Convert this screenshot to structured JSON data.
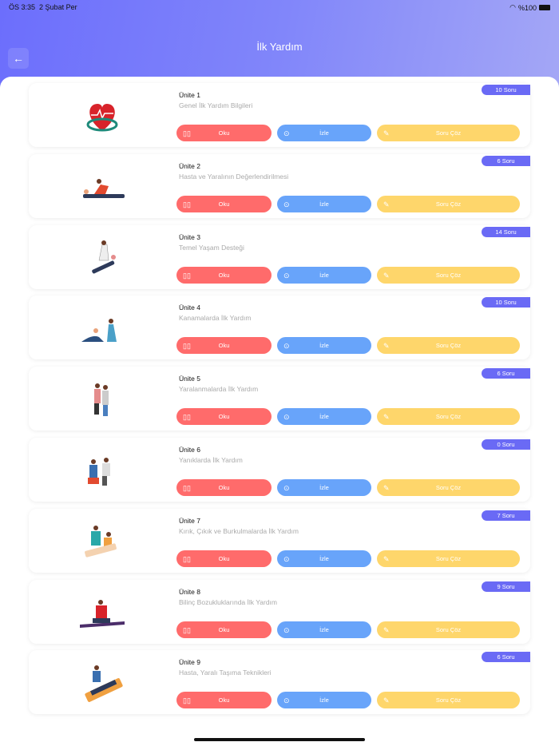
{
  "status": {
    "time": "ÖS 3:35",
    "date": "2 Şubat Per",
    "battery": "%100"
  },
  "header": {
    "title": "İlk Yardım"
  },
  "buttons": {
    "read": "Oku",
    "watch": "İzle",
    "quiz": "Soru Çöz"
  },
  "colors": {
    "read": "#ff6b6b",
    "watch": "#68a4fa",
    "quiz": "#fed66b",
    "badge": "#6a6af5"
  },
  "units": [
    {
      "title": "Ünite 1",
      "subtitle": "Genel İlk Yardım Bilgileri",
      "count": "10 Soru"
    },
    {
      "title": "Ünite 2",
      "subtitle": "Hasta ve Yaralının Değerlendirilmesi",
      "count": "6 Soru"
    },
    {
      "title": "Ünite 3",
      "subtitle": "Temel Yaşam Desteği",
      "count": "14 Soru"
    },
    {
      "title": "Ünite 4",
      "subtitle": "Kanamalarda İlk Yardım",
      "count": "10 Soru"
    },
    {
      "title": "Ünite 5",
      "subtitle": "Yaralanmalarda İlk Yardım",
      "count": "6 Soru"
    },
    {
      "title": "Ünite 6",
      "subtitle": "Yanıklarda İlk Yardım",
      "count": "0 Soru"
    },
    {
      "title": "Ünite 7",
      "subtitle": "Kırık, Çıkık ve Burkulmalarda İlk Yardım",
      "count": "7 Soru"
    },
    {
      "title": "Ünite 8",
      "subtitle": "Bilinç Bozukluklarında İlk Yardım",
      "count": "9 Soru"
    },
    {
      "title": "Ünite 9",
      "subtitle": "Hasta, Yaralı Taşıma Teknikleri",
      "count": "6 Soru"
    }
  ]
}
